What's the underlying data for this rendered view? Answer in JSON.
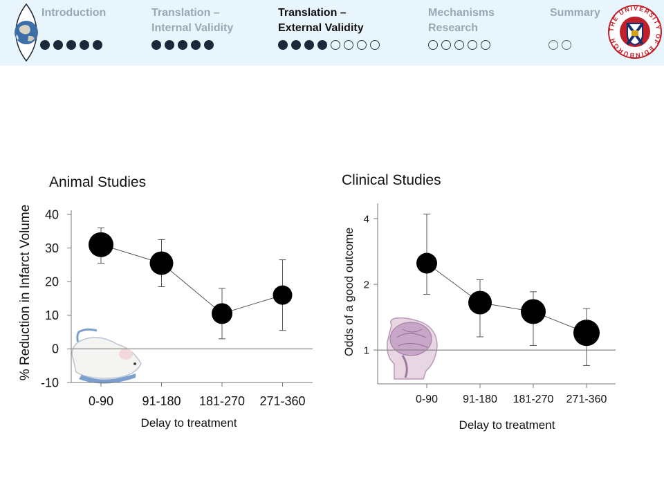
{
  "nav": {
    "sections": [
      {
        "label_line1": "Introduction",
        "label_line2": "",
        "filled": 5,
        "open": 0,
        "active": false
      },
      {
        "label_line1": "Translation –",
        "label_line2": "Internal Validity",
        "filled": 5,
        "open": 0,
        "active": false
      },
      {
        "label_line1": "Translation –",
        "label_line2": "External Validity",
        "filled": 4,
        "open": 4,
        "active": true
      },
      {
        "label_line1": "Mechanisms",
        "label_line2": "Research",
        "filled": 0,
        "open": 5,
        "active": false
      },
      {
        "label_line1": "Summary",
        "label_line2": "",
        "filled": 0,
        "open": 2,
        "active": false
      }
    ],
    "logo_text": "THE UNIVERSITY OF EDINBURGH"
  },
  "chart_data": [
    {
      "type": "line",
      "title": "Animal Studies",
      "xlabel": "Delay to treatment",
      "ylabel": "% Reduction in Infarct Volume",
      "categories": [
        "0-90",
        "91-180",
        "181-270",
        "271-360"
      ],
      "values": [
        31,
        25.5,
        10.5,
        16
      ],
      "error_low": [
        25.5,
        18.5,
        3,
        5.5
      ],
      "error_high": [
        36,
        32.5,
        18,
        26.5
      ],
      "yticks": [
        -10,
        0,
        10,
        20,
        30,
        40
      ],
      "ylim": [
        -10,
        40
      ],
      "reference_line": 0,
      "marker_sizes": [
        18,
        17,
        15,
        14
      ],
      "image": "white lab rat"
    },
    {
      "type": "line",
      "title": "Clinical Studies",
      "xlabel": "Delay to treatment",
      "ylabel": "Odds of a good outcome",
      "categories": [
        "0-90",
        "91-180",
        "181-270",
        "271-360"
      ],
      "values": [
        2.5,
        1.65,
        1.5,
        1.2
      ],
      "error_low": [
        1.8,
        1.15,
        1.05,
        0.85
      ],
      "error_high": [
        4.2,
        2.1,
        1.85,
        1.55
      ],
      "yticks": [
        1,
        2,
        4
      ],
      "ylim": [
        0.7,
        4.5
      ],
      "yscale": "log",
      "reference_line": 1,
      "marker_sizes": [
        15,
        17,
        18,
        19
      ],
      "image": "sagittal head MRI section"
    }
  ]
}
